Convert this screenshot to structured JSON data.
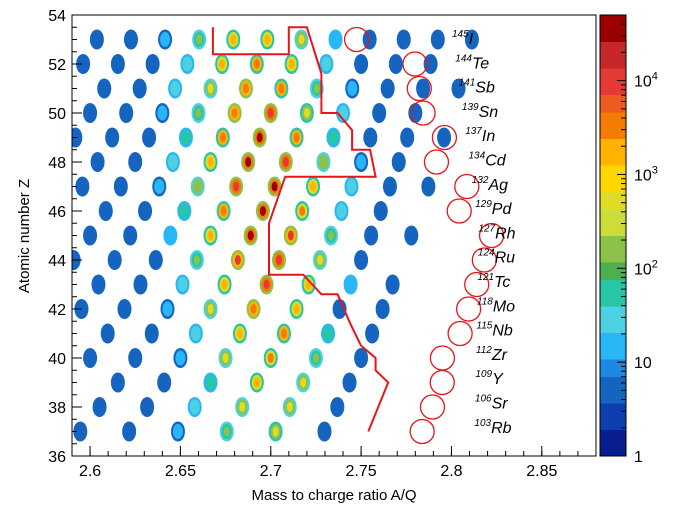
{
  "chart_data": {
    "type": "heatmap",
    "title": "",
    "xlabel": "Mass to charge ratio A/Q",
    "ylabel": "Atomic number Z",
    "xlim": [
      2.59,
      2.88
    ],
    "ylim": [
      36,
      54
    ],
    "x_ticks": [
      "2.6",
      "2.65",
      "2.7",
      "2.75",
      "2.8",
      "2.85"
    ],
    "y_ticks": [
      "36",
      "38",
      "40",
      "42",
      "44",
      "46",
      "48",
      "50",
      "52",
      "54"
    ],
    "color_scale": "log",
    "zlim": [
      1,
      50000
    ],
    "colorbar_ticks": [
      "1",
      "10",
      "10^2",
      "10^3",
      "10^4"
    ],
    "colors": [
      "#0a1f8f",
      "#1565c0",
      "#29b6f6",
      "#4dd0e1",
      "#26c6a6",
      "#8bc34a",
      "#e0dc25",
      "#ffb300",
      "#f57c00",
      "#e53935",
      "#9b0000"
    ],
    "isotope_labels": [
      {
        "mass": "145",
        "element": "I"
      },
      {
        "mass": "144",
        "element": "Te"
      },
      {
        "mass": "141",
        "element": "Sb"
      },
      {
        "mass": "139",
        "element": "Sn"
      },
      {
        "mass": "137",
        "element": "In"
      },
      {
        "mass": "134",
        "element": "Cd"
      },
      {
        "mass": "132",
        "element": "Ag"
      },
      {
        "mass": "129",
        "element": "Pd"
      },
      {
        "mass": "127",
        "element": "Rh"
      },
      {
        "mass": "124",
        "element": "Ru"
      },
      {
        "mass": "121",
        "element": "Tc"
      },
      {
        "mass": "118",
        "element": "Mo"
      },
      {
        "mass": "115",
        "element": "Nb"
      },
      {
        "mass": "112",
        "element": "Zr"
      },
      {
        "mass": "109",
        "element": "Y"
      },
      {
        "mass": "106",
        "element": "Sr"
      },
      {
        "mass": "103",
        "element": "Rb"
      }
    ],
    "circled_isotopes": [
      {
        "x": 2.7475,
        "y": 53
      },
      {
        "x": 2.7798,
        "y": 52
      },
      {
        "x": 2.7822,
        "y": 51
      },
      {
        "x": 2.7843,
        "y": 50
      },
      {
        "x": 2.7961,
        "y": 49
      },
      {
        "x": 2.7917,
        "y": 48
      },
      {
        "x": 2.8085,
        "y": 47
      },
      {
        "x": 2.8043,
        "y": 46
      },
      {
        "x": 2.8222,
        "y": 45
      },
      {
        "x": 2.8182,
        "y": 44
      },
      {
        "x": 2.814,
        "y": 43
      },
      {
        "x": 2.8095,
        "y": 42
      },
      {
        "x": 2.8048,
        "y": 41
      },
      {
        "x": 2.795,
        "y": 40
      },
      {
        "x": 2.7949,
        "y": 39
      },
      {
        "x": 2.7895,
        "y": 38
      },
      {
        "x": 2.7838,
        "y": 37
      }
    ]
  }
}
